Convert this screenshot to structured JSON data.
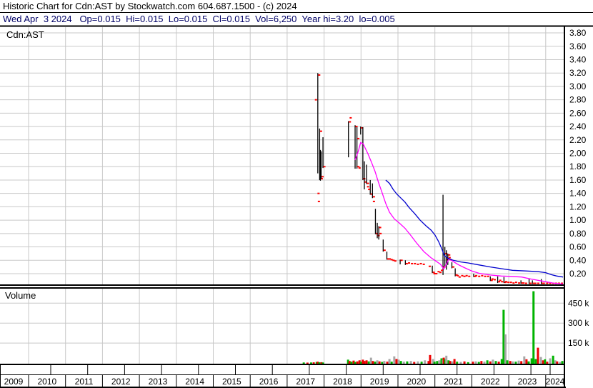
{
  "header": {
    "line1": "Historic Chart for Cdn:AST by Stockwatch.com 604.687.1500 - (c) 2024",
    "line2": "Wed Apr  3 2024   Op=0.015  Hi=0.015  Lo=0.015  Cl=0.015  Vol=6,250  Year hi=3.20  lo=0.005"
  },
  "price_pane": {
    "symbol": "Cdn:AST"
  },
  "volume_pane": {
    "label": "Volume"
  },
  "chart_data": {
    "type": "hlc-bar-with-volume",
    "title": "Historic Chart for Cdn:AST",
    "legend_position": "none",
    "grid": true,
    "x_axis": {
      "years": [
        "2009",
        "2010",
        "2011",
        "2012",
        "2013",
        "2014",
        "2015",
        "2016",
        "2017",
        "2018",
        "2019",
        "2020",
        "2021",
        "2022",
        "2023",
        "2024"
      ],
      "range": [
        2009.2,
        2024.5
      ]
    },
    "price_axis": {
      "ticks": [
        "3.80",
        "3.60",
        "3.40",
        "3.20",
        "3.00",
        "2.80",
        "2.60",
        "2.40",
        "2.20",
        "2.00",
        "1.80",
        "1.60",
        "1.40",
        "1.20",
        "1.00",
        "0.80",
        "0.60",
        "0.40",
        "0.20"
      ],
      "range": [
        0.0,
        3.9
      ],
      "side": "right"
    },
    "volume_axis": {
      "ticks": [
        {
          "label": "450 k",
          "k": 450
        },
        {
          "label": "300 k",
          "k": 300
        },
        {
          "label": "150 k",
          "k": 150
        }
      ],
      "range_k": [
        0,
        560
      ],
      "side": "right"
    },
    "colors": {
      "grid": "#c8c8c8",
      "bar": "#000000",
      "close": "#ff0000",
      "ma_fast": "#ff00ff",
      "ma_slow": "#0000cd",
      "vol_up": "#00b400",
      "vol_down": "#ee0000",
      "vol_flat": "#a8a8a8",
      "border": "#000000",
      "quote_line": "#000066"
    },
    "price_bars": [
      [
        2017.83,
        3.2,
        1.7,
        3.17
      ],
      [
        2017.88,
        2.37,
        1.6,
        2.33
      ],
      [
        2017.9,
        2.05,
        1.59,
        1.62
      ],
      [
        2017.92,
        2.03,
        1.62,
        1.65
      ],
      [
        2017.97,
        2.24,
        1.78,
        1.8
      ],
      [
        2018.66,
        2.48,
        1.94,
        2.47
      ],
      [
        2018.84,
        2.42,
        1.77,
        2.4
      ],
      [
        2018.89,
        2.39,
        1.77,
        2.22
      ],
      [
        2018.99,
        2.4,
        2.28,
        2.38
      ],
      [
        2019.05,
        2.39,
        1.6,
        1.62
      ],
      [
        2019.09,
        1.88,
        1.46,
        1.57
      ],
      [
        2019.15,
        1.83,
        1.54,
        1.55
      ],
      [
        2019.25,
        1.6,
        1.38,
        1.39
      ],
      [
        2019.31,
        1.55,
        1.33,
        1.35
      ],
      [
        2019.39,
        1.17,
        0.79,
        0.8
      ],
      [
        2019.44,
        0.96,
        0.73,
        0.77
      ],
      [
        2019.48,
        0.91,
        0.71,
        0.89
      ],
      [
        2019.6,
        0.71,
        0.53,
        0.55
      ],
      [
        2019.7,
        0.53,
        0.41,
        0.42
      ],
      [
        2020.06,
        0.41,
        0.34,
        0.4
      ],
      [
        2020.2,
        0.4,
        0.33,
        0.35
      ],
      [
        2020.93,
        0.32,
        0.21,
        0.22
      ],
      [
        2021.22,
        1.38,
        0.18,
        0.3
      ],
      [
        2021.27,
        0.6,
        0.3,
        0.5
      ],
      [
        2021.31,
        0.55,
        0.26,
        0.41
      ],
      [
        2021.35,
        0.5,
        0.33,
        0.48
      ],
      [
        2021.46,
        0.37,
        0.28,
        0.3
      ],
      [
        2021.55,
        0.28,
        0.16,
        0.18
      ],
      [
        2022.05,
        0.2,
        0.15,
        0.16
      ],
      [
        2022.5,
        0.16,
        0.09,
        0.1
      ],
      [
        2022.7,
        0.16,
        0.06,
        0.08
      ],
      [
        2022.87,
        0.15,
        0.06,
        0.07
      ],
      [
        2023.33,
        0.1,
        0.05,
        0.06
      ],
      [
        2023.55,
        0.12,
        0.03,
        0.05
      ],
      [
        2023.64,
        0.1,
        0.02,
        0.03
      ],
      [
        2023.88,
        0.12,
        0.02,
        0.05
      ]
    ],
    "close_dots": [
      [
        2017.78,
        2.8
      ],
      [
        2017.85,
        1.4
      ],
      [
        2017.86,
        1.28
      ],
      [
        2018.72,
        2.53
      ],
      [
        2018.93,
        1.8
      ],
      [
        2018.96,
        1.78
      ],
      [
        2019.19,
        1.5
      ],
      [
        2019.22,
        1.46
      ],
      [
        2019.35,
        1.28
      ],
      [
        2019.53,
        0.8
      ],
      [
        2019.78,
        0.42
      ],
      [
        2019.83,
        0.41
      ],
      [
        2019.88,
        0.4
      ],
      [
        2019.93,
        0.39
      ],
      [
        2020.3,
        0.36
      ],
      [
        2020.38,
        0.35
      ],
      [
        2020.46,
        0.35
      ],
      [
        2020.54,
        0.34
      ],
      [
        2020.62,
        0.35
      ],
      [
        2020.7,
        0.34
      ],
      [
        2020.86,
        0.31
      ],
      [
        2020.99,
        0.2
      ],
      [
        2021.04,
        0.2
      ],
      [
        2021.1,
        0.23
      ],
      [
        2021.15,
        0.22
      ],
      [
        2021.19,
        0.25
      ],
      [
        2021.4,
        0.44
      ],
      [
        2021.43,
        0.41
      ],
      [
        2021.62,
        0.17
      ],
      [
        2021.67,
        0.15
      ],
      [
        2021.74,
        0.17
      ],
      [
        2021.8,
        0.16
      ],
      [
        2021.86,
        0.17
      ],
      [
        2021.93,
        0.16
      ],
      [
        2022.12,
        0.17
      ],
      [
        2022.2,
        0.16
      ],
      [
        2022.28,
        0.17
      ],
      [
        2022.36,
        0.16
      ],
      [
        2022.44,
        0.16
      ],
      [
        2022.56,
        0.12
      ],
      [
        2022.62,
        0.11
      ],
      [
        2022.77,
        0.1
      ],
      [
        2022.82,
        0.08
      ],
      [
        2022.93,
        0.08
      ],
      [
        2022.99,
        0.07
      ],
      [
        2023.06,
        0.07
      ],
      [
        2023.13,
        0.06
      ],
      [
        2023.2,
        0.07
      ],
      [
        2023.28,
        0.06
      ],
      [
        2023.4,
        0.06
      ],
      [
        2023.47,
        0.05
      ],
      [
        2023.72,
        0.04
      ],
      [
        2023.8,
        0.03
      ],
      [
        2023.95,
        0.03
      ],
      [
        2024.04,
        0.02
      ],
      [
        2024.12,
        0.015
      ],
      [
        2024.2,
        0.02
      ],
      [
        2024.28,
        0.015
      ],
      [
        2024.36,
        0.015
      ],
      [
        2024.44,
        0.015
      ]
    ],
    "ma_fast_points": [
      [
        2018.84,
        1.9
      ],
      [
        2018.92,
        2.02
      ],
      [
        2018.99,
        2.16
      ],
      [
        2019.06,
        2.14
      ],
      [
        2019.12,
        2.07
      ],
      [
        2019.19,
        1.99
      ],
      [
        2019.28,
        1.87
      ],
      [
        2019.38,
        1.73
      ],
      [
        2019.47,
        1.57
      ],
      [
        2019.57,
        1.41
      ],
      [
        2019.67,
        1.25
      ],
      [
        2019.77,
        1.12
      ],
      [
        2019.9,
        1.02
      ],
      [
        2020.05,
        0.95
      ],
      [
        2020.19,
        0.88
      ],
      [
        2020.35,
        0.77
      ],
      [
        2020.5,
        0.66
      ],
      [
        2020.7,
        0.53
      ],
      [
        2020.89,
        0.44
      ],
      [
        2021.05,
        0.38
      ],
      [
        2021.15,
        0.34
      ],
      [
        2021.24,
        0.27
      ],
      [
        2021.3,
        0.33
      ],
      [
        2021.38,
        0.42
      ],
      [
        2021.5,
        0.38
      ],
      [
        2021.65,
        0.33
      ],
      [
        2021.8,
        0.29
      ],
      [
        2022.0,
        0.24
      ],
      [
        2022.2,
        0.205
      ],
      [
        2022.5,
        0.18
      ],
      [
        2022.8,
        0.165
      ],
      [
        2023.0,
        0.16
      ],
      [
        2023.35,
        0.15
      ],
      [
        2023.6,
        0.12
      ],
      [
        2023.9,
        0.09
      ],
      [
        2024.2,
        0.06
      ],
      [
        2024.47,
        0.04
      ]
    ],
    "ma_slow_points": [
      [
        2019.67,
        1.6
      ],
      [
        2019.77,
        1.55
      ],
      [
        2019.87,
        1.46
      ],
      [
        2019.97,
        1.39
      ],
      [
        2020.08,
        1.33
      ],
      [
        2020.19,
        1.27
      ],
      [
        2020.3,
        1.19
      ],
      [
        2020.45,
        1.1
      ],
      [
        2020.6,
        1.0
      ],
      [
        2020.75,
        0.92
      ],
      [
        2020.9,
        0.85
      ],
      [
        2021.0,
        0.78
      ],
      [
        2021.1,
        0.68
      ],
      [
        2021.18,
        0.58
      ],
      [
        2021.26,
        0.47
      ],
      [
        2021.35,
        0.43
      ],
      [
        2021.5,
        0.4
      ],
      [
        2021.7,
        0.375
      ],
      [
        2021.9,
        0.36
      ],
      [
        2022.2,
        0.33
      ],
      [
        2022.5,
        0.3
      ],
      [
        2022.8,
        0.275
      ],
      [
        2023.1,
        0.25
      ],
      [
        2023.5,
        0.24
      ],
      [
        2023.8,
        0.23
      ],
      [
        2024.0,
        0.215
      ],
      [
        2024.15,
        0.185
      ],
      [
        2024.3,
        0.165
      ],
      [
        2024.47,
        0.15
      ]
    ],
    "volume_bars": [
      [
        2017.45,
        4,
        "g"
      ],
      [
        2017.55,
        3,
        "r"
      ],
      [
        2017.65,
        4,
        "g"
      ],
      [
        2017.72,
        5,
        "r"
      ],
      [
        2017.8,
        8,
        "g"
      ],
      [
        2017.83,
        10,
        "r"
      ],
      [
        2017.87,
        5,
        "g"
      ],
      [
        2017.93,
        6,
        "r"
      ],
      [
        2017.97,
        4,
        "g"
      ],
      [
        2018.65,
        25,
        "g"
      ],
      [
        2018.69,
        15,
        "r"
      ],
      [
        2018.74,
        10,
        "g"
      ],
      [
        2018.8,
        18,
        "r"
      ],
      [
        2018.84,
        8,
        "g"
      ],
      [
        2018.9,
        12,
        "r"
      ],
      [
        2018.96,
        20,
        "r"
      ],
      [
        2019.0,
        10,
        "g"
      ],
      [
        2019.05,
        25,
        "r"
      ],
      [
        2019.09,
        15,
        "r"
      ],
      [
        2019.15,
        20,
        "r"
      ],
      [
        2019.21,
        12,
        "g"
      ],
      [
        2019.27,
        40,
        "n"
      ],
      [
        2019.32,
        15,
        "r"
      ],
      [
        2019.38,
        10,
        "g"
      ],
      [
        2019.44,
        20,
        "n"
      ],
      [
        2019.5,
        12,
        "r"
      ],
      [
        2019.57,
        8,
        "g"
      ],
      [
        2019.63,
        15,
        "n"
      ],
      [
        2019.71,
        10,
        "r"
      ],
      [
        2019.77,
        30,
        "n"
      ],
      [
        2019.83,
        10,
        "g"
      ],
      [
        2019.9,
        50,
        "n"
      ],
      [
        2019.96,
        30,
        "r"
      ],
      [
        2020.02,
        25,
        "n"
      ],
      [
        2020.08,
        15,
        "g"
      ],
      [
        2020.16,
        10,
        "n"
      ],
      [
        2020.25,
        12,
        "g"
      ],
      [
        2020.35,
        15,
        "n"
      ],
      [
        2020.44,
        8,
        "r"
      ],
      [
        2020.54,
        12,
        "n"
      ],
      [
        2020.64,
        10,
        "g"
      ],
      [
        2020.73,
        20,
        "n"
      ],
      [
        2020.83,
        15,
        "r"
      ],
      [
        2020.87,
        60,
        "r"
      ],
      [
        2020.95,
        30,
        "n"
      ],
      [
        2020.99,
        10,
        "g"
      ],
      [
        2021.06,
        15,
        "g"
      ],
      [
        2021.12,
        20,
        "n"
      ],
      [
        2021.18,
        35,
        "g"
      ],
      [
        2021.22,
        25,
        "n"
      ],
      [
        2021.24,
        40,
        "r"
      ],
      [
        2021.28,
        28,
        "g"
      ],
      [
        2021.31,
        55,
        "n"
      ],
      [
        2021.37,
        20,
        "g"
      ],
      [
        2021.41,
        15,
        "r"
      ],
      [
        2021.47,
        12,
        "n"
      ],
      [
        2021.53,
        30,
        "r"
      ],
      [
        2021.6,
        10,
        "g"
      ],
      [
        2021.7,
        8,
        "n"
      ],
      [
        2021.8,
        12,
        "r"
      ],
      [
        2021.9,
        6,
        "g"
      ],
      [
        2022.03,
        10,
        "r"
      ],
      [
        2022.11,
        12,
        "n"
      ],
      [
        2022.19,
        8,
        "g"
      ],
      [
        2022.26,
        15,
        "r"
      ],
      [
        2022.34,
        10,
        "n"
      ],
      [
        2022.42,
        20,
        "g"
      ],
      [
        2022.5,
        12,
        "r"
      ],
      [
        2022.57,
        25,
        "n"
      ],
      [
        2022.65,
        15,
        "g"
      ],
      [
        2022.73,
        10,
        "r"
      ],
      [
        2022.81,
        30,
        "g"
      ],
      [
        2022.86,
        400,
        "g"
      ],
      [
        2022.91,
        215,
        "n"
      ],
      [
        2022.96,
        20,
        "g"
      ],
      [
        2023.04,
        15,
        "r"
      ],
      [
        2023.11,
        12,
        "n"
      ],
      [
        2023.19,
        10,
        "g"
      ],
      [
        2023.27,
        18,
        "n"
      ],
      [
        2023.34,
        14,
        "r"
      ],
      [
        2023.42,
        50,
        "n"
      ],
      [
        2023.48,
        28,
        "r"
      ],
      [
        2023.54,
        12,
        "g"
      ],
      [
        2023.62,
        35,
        "g"
      ],
      [
        2023.67,
        540,
        "g"
      ],
      [
        2023.73,
        30,
        "g"
      ],
      [
        2023.79,
        115,
        "r"
      ],
      [
        2023.87,
        45,
        "n"
      ],
      [
        2023.93,
        20,
        "r"
      ],
      [
        2023.98,
        28,
        "g"
      ],
      [
        2024.04,
        10,
        "r"
      ],
      [
        2024.12,
        35,
        "n"
      ],
      [
        2024.2,
        55,
        "g"
      ],
      [
        2024.26,
        20,
        "n"
      ],
      [
        2024.31,
        12,
        "r"
      ],
      [
        2024.39,
        8,
        "n"
      ],
      [
        2024.45,
        15,
        "g"
      ]
    ]
  }
}
